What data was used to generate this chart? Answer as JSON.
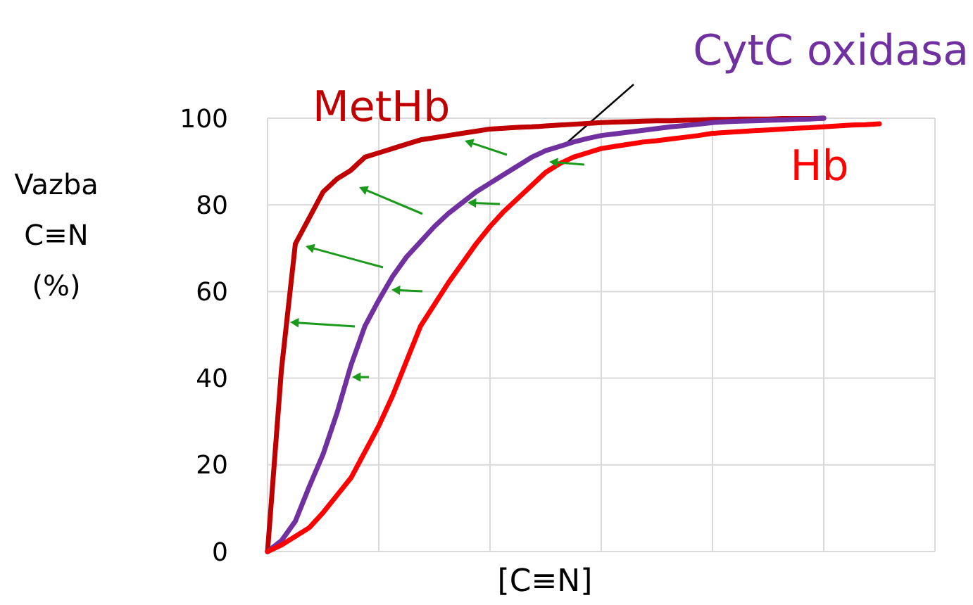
{
  "chart_data": {
    "type": "line",
    "xlabel": "[C≡N]",
    "ylabel": "Vazba C≡N (%)",
    "categories": [
      null,
      null,
      null,
      null,
      null,
      null,
      null,
      null,
      null,
      null,
      null,
      null,
      null,
      null,
      null,
      null,
      null,
      null,
      null,
      null,
      null,
      null,
      null,
      null,
      null,
      null,
      null,
      null,
      null,
      null,
      null,
      null,
      null,
      null,
      null,
      null,
      null,
      null,
      null,
      null,
      null,
      null,
      null,
      null,
      null
    ],
    "ylim": [
      0,
      100
    ],
    "yticks": [
      0,
      20,
      40,
      60,
      80,
      100
    ],
    "grid": true,
    "legend": false,
    "marker": "none",
    "line_style": "solid",
    "series": [
      {
        "name": "MetHb",
        "color": "#c00000",
        "values": [
          0,
          42,
          71,
          77,
          83,
          86,
          88,
          91,
          92,
          93,
          94,
          95,
          95.5,
          96,
          96.5,
          97,
          97.5,
          97.7,
          97.9,
          98,
          98.2,
          98.4,
          98.6,
          98.8,
          99,
          99.1,
          99.2,
          99.3,
          99.4,
          99.4,
          99.5,
          99.6,
          99.7,
          99.7,
          99.8,
          99.8,
          99.8,
          99.9,
          99.9,
          99.9,
          100,
          null,
          null,
          null,
          null
        ]
      },
      {
        "name": "CytC oxidasa",
        "color": "#7030a0",
        "values": [
          0,
          2.5,
          7,
          15,
          22.5,
          32,
          43,
          52,
          58,
          63.5,
          68,
          71.5,
          75,
          78,
          80.5,
          83,
          85,
          87,
          89,
          91,
          92.5,
          93.5,
          94.5,
          95.3,
          96,
          96.4,
          96.8,
          97.2,
          97.6,
          98,
          98.3,
          98.6,
          99,
          99.2,
          99.3,
          99.4,
          99.5,
          99.6,
          99.7,
          99.8,
          100,
          null,
          null,
          null,
          null
        ]
      },
      {
        "name": "Hb",
        "color": "#ff0000",
        "values": [
          0,
          1.5,
          3.5,
          5.5,
          9,
          13,
          17,
          23,
          29,
          36,
          44,
          52,
          57,
          62,
          66.5,
          71,
          75,
          78.5,
          81.5,
          84.5,
          87.5,
          89.5,
          91,
          92,
          93,
          93.5,
          94,
          94.5,
          94.8,
          95.2,
          95.6,
          96,
          96.5,
          96.7,
          96.9,
          97.1,
          97.3,
          97.5,
          97.7,
          97.8,
          98,
          98.2,
          98.4,
          98.5,
          98.7
        ]
      }
    ]
  }
}
